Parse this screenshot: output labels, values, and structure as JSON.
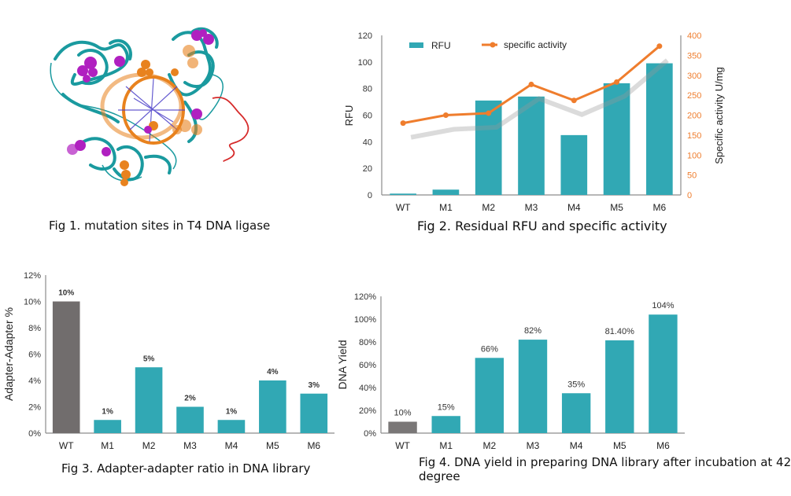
{
  "figures": {
    "fig1": {
      "caption": "Fig 1. mutation sites in T4 DNA ligase",
      "image_description": "protein cartoon structure with DNA helix",
      "colors": {
        "protein": "#1a9a9f",
        "dna": "#e8821e",
        "mutation_sites": "#b020c0",
        "loop": "#d62a2a",
        "bases": "#4b3fc8"
      }
    },
    "fig2": {
      "caption": "Fig 2. Residual RFU and specific activity"
    },
    "fig3": {
      "caption": "Fig 3.   Adapter-adapter ratio in DNA library"
    },
    "fig4": {
      "caption_line1": "Fig 4. DNA yield in preparing DNA library after incubation at 42",
      "caption_line2": "degree"
    }
  },
  "colors": {
    "teal": "#31a8b4",
    "gray": "#716d6d",
    "gray_wt4": "#7a7777",
    "orange": "#ef7d2d",
    "axis": "#8c8c8c",
    "text": "#333333"
  },
  "chart_data": [
    {
      "id": "fig2",
      "type": "bar",
      "title": "Fig 2. Residual RFU and specific activity",
      "categories": [
        "WT",
        "M1",
        "M2",
        "M3",
        "M4",
        "M5",
        "M6"
      ],
      "series": [
        {
          "name": "RFU",
          "type": "bar",
          "axis": "left",
          "values": [
            1,
            4,
            71,
            74,
            45,
            84,
            99
          ]
        },
        {
          "name": "specific activity",
          "type": "line",
          "axis": "right",
          "values": [
            180,
            200,
            205,
            277,
            237,
            283,
            373
          ]
        }
      ],
      "ylabel": "RFU",
      "ylabel_right": "Specific activity U/mg",
      "ylim": [
        0,
        120
      ],
      "ylim_right": [
        0,
        400
      ],
      "yticks": [
        "0",
        "20",
        "40",
        "60",
        "80",
        "100",
        "120"
      ],
      "yticks_right": [
        "0",
        "50",
        "100",
        "150",
        "200",
        "250",
        "300",
        "350",
        "400"
      ],
      "legend": [
        {
          "label": "RFU",
          "marker": "bar"
        },
        {
          "label": "specific activity",
          "marker": "line"
        }
      ],
      "legend_position": "top",
      "grid": false
    },
    {
      "id": "fig3",
      "type": "bar",
      "title": "Fig 3.   Adapter-adapter ratio in DNA library",
      "categories": [
        "WT",
        "M1",
        "M2",
        "M3",
        "M4",
        "M5",
        "M6"
      ],
      "values": [
        10,
        1,
        5,
        2,
        1,
        4,
        3
      ],
      "data_labels": [
        "10%",
        "1%",
        "5%",
        "2%",
        "1%",
        "4%",
        "3%"
      ],
      "ylabel": "Adapter-Adapter %",
      "ylim": [
        0,
        12
      ],
      "yticks": [
        "0%",
        "2%",
        "4%",
        "6%",
        "8%",
        "10%",
        "12%"
      ],
      "grid": false
    },
    {
      "id": "fig4",
      "type": "bar",
      "title": "Fig 4. DNA yield in preparing DNA library after incubation at 42 degree",
      "categories": [
        "WT",
        "M1",
        "M2",
        "M3",
        "M4",
        "M5",
        "M6"
      ],
      "values": [
        10,
        15,
        66,
        82,
        35,
        81.4,
        104
      ],
      "data_labels": [
        "10%",
        "15%",
        "66%",
        "82%",
        "35%",
        "81.40%",
        "104%"
      ],
      "ylabel": "DNA Yield",
      "ylim": [
        0,
        120
      ],
      "yticks": [
        "0%",
        "20%",
        "40%",
        "60%",
        "80%",
        "100%",
        "120%"
      ],
      "grid": false
    }
  ]
}
